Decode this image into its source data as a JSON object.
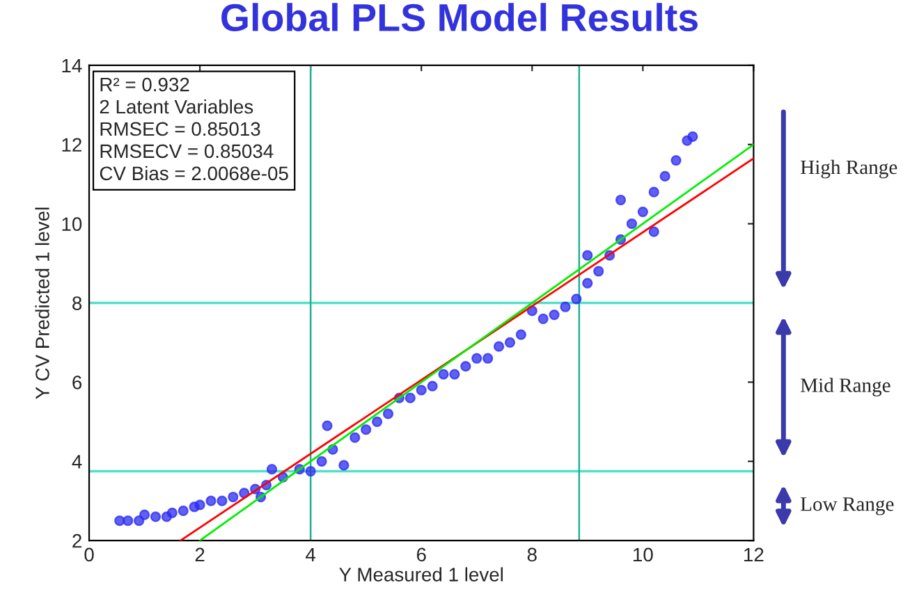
{
  "chart_data": {
    "type": "scatter",
    "title": "Global PLS Model Results",
    "xlabel": "Y Measured 1 level",
    "ylabel": "Y CV Predicted 1 level",
    "xlim": [
      0,
      12
    ],
    "ylim": [
      2,
      14
    ],
    "xticks": [
      0,
      2,
      4,
      6,
      8,
      10,
      12
    ],
    "yticks": [
      2,
      4,
      6,
      8,
      10,
      12,
      14
    ],
    "grid": false,
    "marker": "circle",
    "series": [
      {
        "color": "#2b2bf0",
        "x": [
          0.55,
          0.7,
          0.9,
          1.0,
          1.2,
          1.4,
          1.5,
          1.7,
          1.9,
          2.0,
          2.2,
          2.4,
          2.6,
          2.8,
          3.0,
          3.1,
          3.2,
          3.3,
          3.5,
          3.8,
          4.0,
          4.2,
          4.3,
          4.4,
          4.6,
          4.8,
          5.0,
          5.2,
          5.4,
          5.6,
          5.8,
          6.0,
          6.2,
          6.4,
          6.6,
          6.8,
          7.0,
          7.2,
          7.4,
          7.6,
          7.8,
          8.0,
          8.2,
          8.4,
          8.6,
          8.8,
          9.0,
          9.0,
          9.2,
          9.4,
          9.6,
          9.6,
          9.8,
          10.0,
          10.2,
          10.2,
          10.4,
          10.6,
          10.8,
          10.9
        ],
        "values": [
          2.5,
          2.5,
          2.5,
          2.65,
          2.6,
          2.6,
          2.7,
          2.75,
          2.85,
          2.9,
          3.0,
          3.0,
          3.1,
          3.2,
          3.3,
          3.1,
          3.4,
          3.8,
          3.6,
          3.8,
          3.75,
          4.0,
          4.9,
          4.3,
          3.9,
          4.6,
          4.8,
          5.0,
          5.2,
          5.6,
          5.6,
          5.8,
          5.9,
          6.2,
          6.2,
          6.4,
          6.6,
          6.6,
          6.9,
          7.0,
          7.2,
          7.8,
          7.6,
          7.7,
          7.9,
          8.1,
          8.5,
          9.2,
          8.8,
          9.2,
          9.6,
          10.6,
          10.0,
          10.3,
          10.8,
          9.8,
          11.2,
          11.6,
          12.1,
          12.2
        ]
      },
      {
        "type": "line",
        "marker": "none",
        "color": "#ff0000",
        "x": [
          1.65,
          12
        ],
        "values": [
          2,
          11.65
        ]
      },
      {
        "type": "line",
        "marker": "none",
        "color": "#00ee00",
        "x": [
          2,
          12
        ],
        "values": [
          2,
          12
        ]
      }
    ],
    "ref_lines": [
      {
        "axis": "y",
        "value": 8,
        "color": "#50e0c8"
      },
      {
        "axis": "y",
        "value": 3.75,
        "color": "#50e0c8"
      },
      {
        "axis": "x",
        "value": 4,
        "color": "#20b098"
      },
      {
        "axis": "x",
        "value": 8.85,
        "color": "#20b098"
      }
    ],
    "annotations": [
      "R² = 0.932\n2 Latent Variables\nRMSEC = 0.85013\nRMSECV = 0.85034\nCV Bias = 2.0068e-05",
      "High Range",
      "Mid Range",
      "Low Range"
    ]
  }
}
